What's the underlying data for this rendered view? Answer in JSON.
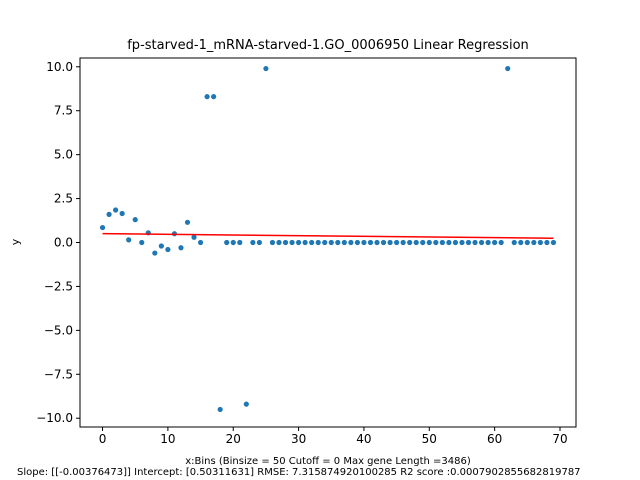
{
  "chart_data": {
    "type": "scatter",
    "title": "fp-starved-1_mRNA-starved-1.GO_0006950 Linear Regression",
    "xlabel": "x:Bins  (Binsize = 50 Cutoff = 0 Max gene Length =3486)",
    "footer": "Slope: [[-0.00376473]] Intercept: [0.50311631] RMSE: 7.315874920100285 R2 score :0.0007902855682819787",
    "ylabel": "y",
    "xlim": [
      -3.45,
      72.45
    ],
    "ylim": [
      -10.5,
      10.5
    ],
    "x_ticks": [
      0,
      10,
      20,
      30,
      40,
      50,
      60,
      70
    ],
    "y_ticks": [
      -10.0,
      -7.5,
      -5.0,
      -2.5,
      0.0,
      2.5,
      5.0,
      7.5,
      10.0
    ],
    "x_tick_labels": [
      "0",
      "10",
      "20",
      "30",
      "40",
      "50",
      "60",
      "70"
    ],
    "y_tick_labels": [
      "−10.0",
      "−7.5",
      "−5.0",
      "−2.5",
      "0.0",
      "2.5",
      "5.0",
      "7.5",
      "10.0"
    ],
    "grid": false,
    "point_color": "#1f77b4",
    "line_color": "#ff0000",
    "series": [
      {
        "x": [
          0,
          1,
          2,
          3,
          4,
          5,
          6,
          7,
          8,
          9,
          10,
          11,
          12,
          13,
          14,
          15,
          16,
          17,
          18,
          19,
          20,
          21,
          22,
          23,
          24,
          25,
          26,
          27,
          28,
          29,
          30,
          31,
          32,
          33,
          34,
          35,
          36,
          37,
          38,
          39,
          40,
          41,
          42,
          43,
          44,
          45,
          46,
          47,
          48,
          49,
          50,
          51,
          52,
          53,
          54,
          55,
          56,
          57,
          58,
          59,
          60,
          61,
          62,
          63,
          64,
          65,
          66,
          67,
          68,
          69
        ],
        "y": [
          0.85,
          1.6,
          1.85,
          1.65,
          0.15,
          1.3,
          0.0,
          0.55,
          -0.6,
          -0.2,
          -0.4,
          0.5,
          -0.3,
          1.15,
          0.3,
          0.0,
          8.3,
          8.3,
          -9.5,
          0.0,
          0.0,
          0.0,
          -9.2,
          0.0,
          0.0,
          9.9,
          0.0,
          0.0,
          0.0,
          0.0,
          0.0,
          0.0,
          0.0,
          0.0,
          0.0,
          0.0,
          0.0,
          0.0,
          0.0,
          0.0,
          0.0,
          0.0,
          0.0,
          0.0,
          0.0,
          0.0,
          0.0,
          0.0,
          0.0,
          0.0,
          0.0,
          0.0,
          0.0,
          0.0,
          0.0,
          0.0,
          0.0,
          0.0,
          0.0,
          0.0,
          0.0,
          0.0,
          9.9,
          0.0,
          0.0,
          0.0,
          0.0,
          0.0,
          0.0,
          0.0
        ]
      }
    ],
    "regression": {
      "slope": -0.00376473,
      "intercept": 0.50311631,
      "x_range": [
        0,
        69
      ]
    }
  }
}
